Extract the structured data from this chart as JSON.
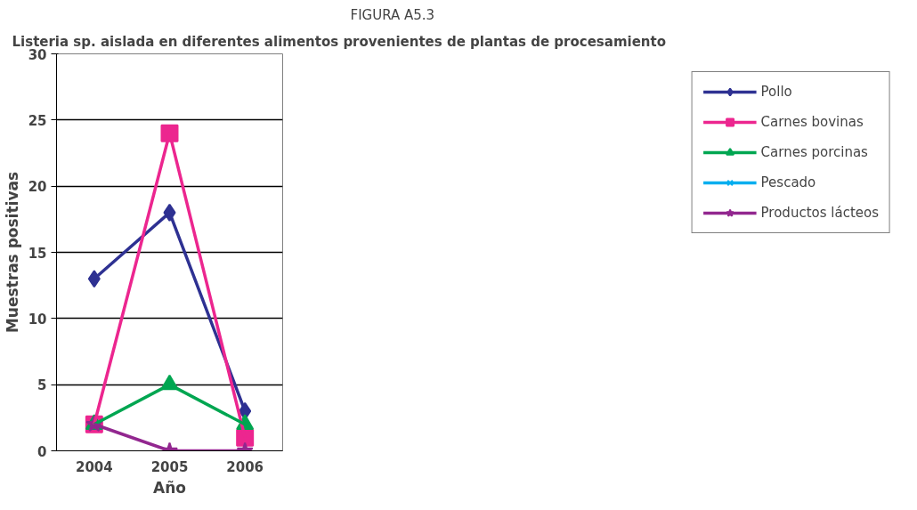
{
  "chart_data": {
    "type": "line",
    "title": "FIGURA A5.3",
    "subtitle": "Listeria sp. aislada en diferentes alimentos provenientes de plantas de procesamiento",
    "xlabel": "Año",
    "ylabel": "Muestras positivas",
    "categories": [
      "2004",
      "2005",
      "2006"
    ],
    "series": [
      {
        "name": "Pollo",
        "color": "#2e3192",
        "marker": "diamond",
        "values": [
          13,
          18,
          3
        ]
      },
      {
        "name": "Carnes bovinas",
        "color": "#ec268f",
        "marker": "square",
        "values": [
          2,
          24,
          1
        ]
      },
      {
        "name": "Carnes porcinas",
        "color": "#00a651",
        "marker": "triangle",
        "values": [
          2,
          5,
          2
        ]
      },
      {
        "name": "Pescado",
        "color": "#00aeef",
        "marker": "cross",
        "values": [
          null,
          null,
          null
        ]
      },
      {
        "name": "Productos lácteos",
        "color": "#92278f",
        "marker": "star",
        "values": [
          2,
          0,
          0
        ]
      }
    ],
    "ylim": [
      0,
      30
    ],
    "yticks": [
      0,
      5,
      10,
      15,
      20,
      25,
      30
    ],
    "grid": "y",
    "legend": "right"
  }
}
